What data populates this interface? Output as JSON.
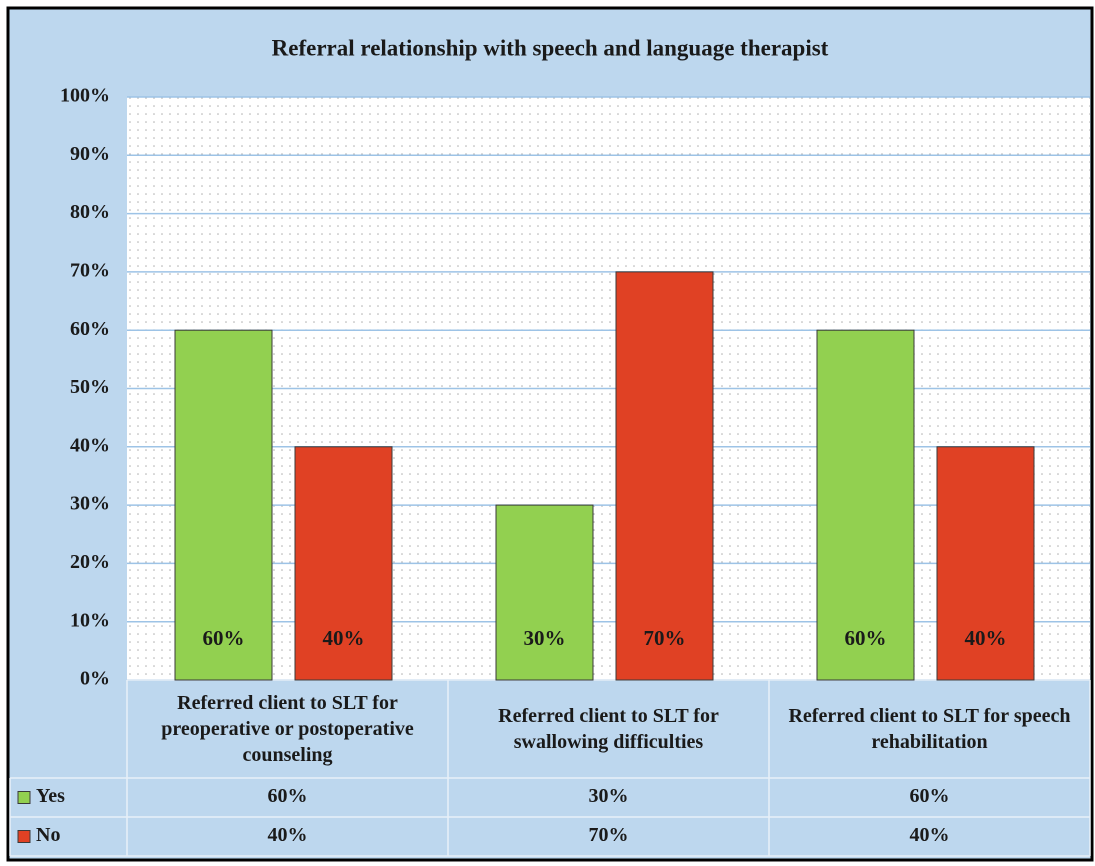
{
  "chart_data": {
    "type": "bar",
    "title": "Referral relationship with speech and language therapist",
    "categories": [
      "Referred client to SLT for preoperative or postoperative counseling",
      "Referred client to SLT for swallowing difficulties",
      "Referred client to SLT for speech rehabilitation"
    ],
    "series": [
      {
        "name": "Yes",
        "color": "#92d050",
        "values": [
          60,
          30,
          60
        ],
        "value_labels": [
          "60%",
          "30%",
          "60%"
        ]
      },
      {
        "name": "No",
        "color": "#e04124",
        "values": [
          40,
          70,
          40
        ],
        "value_labels": [
          "40%",
          "70%",
          "40%"
        ]
      }
    ],
    "ylim": [
      0,
      100
    ],
    "yticks": [
      {
        "value": 0,
        "label": "0%"
      },
      {
        "value": 10,
        "label": "10%"
      },
      {
        "value": 20,
        "label": "20%"
      },
      {
        "value": 30,
        "label": "30%"
      },
      {
        "value": 40,
        "label": "40%"
      },
      {
        "value": 50,
        "label": "50%"
      },
      {
        "value": 60,
        "label": "60%"
      },
      {
        "value": 70,
        "label": "70%"
      },
      {
        "value": 80,
        "label": "80%"
      },
      {
        "value": 90,
        "label": "90%"
      },
      {
        "value": 100,
        "label": "100%"
      }
    ],
    "grid": true
  }
}
